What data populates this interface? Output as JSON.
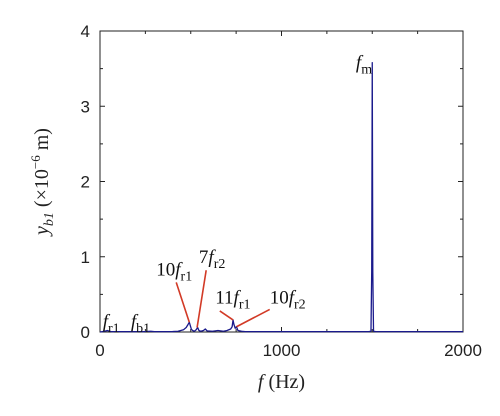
{
  "chart_data": {
    "type": "line",
    "title": "",
    "xlabel": {
      "variable": "f",
      "unit": "(Hz)"
    },
    "ylabel": {
      "variable": "y",
      "subscript": "b1",
      "unit_prefix": "(×10",
      "unit_exponent": "−6",
      "unit_suffix": " m)"
    },
    "xlim": [
      0,
      2000
    ],
    "ylim": [
      0,
      4
    ],
    "xticks": [
      0,
      1000,
      2000
    ],
    "yticks": [
      0,
      1,
      2,
      3,
      4
    ],
    "grid": false,
    "legend": "none",
    "series_color": "#1a1a8c",
    "annotation_line_color": "#d23a26",
    "series": [
      {
        "points": [
          [
            0,
            0.0
          ],
          [
            25,
            0.01
          ],
          [
            40,
            0.02
          ],
          [
            60,
            0.005
          ],
          [
            100,
            0.005
          ],
          [
            150,
            0.005
          ],
          [
            200,
            0.005
          ],
          [
            250,
            0.006
          ],
          [
            280,
            0.01
          ],
          [
            300,
            0.005
          ],
          [
            350,
            0.005
          ],
          [
            400,
            0.006
          ],
          [
            430,
            0.01
          ],
          [
            460,
            0.03
          ],
          [
            475,
            0.06
          ],
          [
            485,
            0.1
          ],
          [
            492,
            0.13
          ],
          [
            498,
            0.08
          ],
          [
            503,
            0.04
          ],
          [
            510,
            0.02
          ],
          [
            520,
            0.01
          ],
          [
            530,
            0.03
          ],
          [
            538,
            0.06
          ],
          [
            545,
            0.02
          ],
          [
            555,
            0.01
          ],
          [
            570,
            0.02
          ],
          [
            580,
            0.04
          ],
          [
            590,
            0.015
          ],
          [
            620,
            0.01
          ],
          [
            650,
            0.02
          ],
          [
            680,
            0.01
          ],
          [
            700,
            0.02
          ],
          [
            720,
            0.04
          ],
          [
            728,
            0.07
          ],
          [
            733,
            0.16
          ],
          [
            738,
            0.1
          ],
          [
            745,
            0.05
          ],
          [
            752,
            0.07
          ],
          [
            760,
            0.02
          ],
          [
            780,
            0.01
          ],
          [
            800,
            0.005
          ],
          [
            900,
            0.005
          ],
          [
            1000,
            0.005
          ],
          [
            1100,
            0.005
          ],
          [
            1200,
            0.005
          ],
          [
            1300,
            0.005
          ],
          [
            1400,
            0.005
          ],
          [
            1480,
            0.005
          ],
          [
            1493,
            0.01
          ],
          [
            1497,
            0.8
          ],
          [
            1500,
            3.58
          ],
          [
            1503,
            0.8
          ],
          [
            1507,
            0.01
          ],
          [
            1520,
            0.005
          ],
          [
            1600,
            0.005
          ],
          [
            1700,
            0.005
          ],
          [
            1800,
            0.005
          ],
          [
            1900,
            0.005
          ],
          [
            2000,
            0.005
          ]
        ]
      }
    ],
    "annotations": [
      {
        "base": "f",
        "sub": "m",
        "pre": "",
        "x": 1500,
        "y": 3.58,
        "text_x": 1410,
        "text_y": 3.5,
        "leader": false
      },
      {
        "base": "f",
        "sub": "r1",
        "pre": "",
        "x": 25,
        "y": 0.01,
        "text_x": 15,
        "text_y": 0.06,
        "leader": false
      },
      {
        "base": "f",
        "sub": "b1",
        "pre": "",
        "x": 280,
        "y": 0.01,
        "text_x": 170,
        "text_y": 0.06,
        "leader": false
      },
      {
        "base": "f",
        "sub": "r1",
        "pre": "10",
        "x": 492,
        "y": 0.13,
        "text_x": 310,
        "text_y": 0.75,
        "leader": true,
        "leader_from_x": 420,
        "leader_from_y": 0.66
      },
      {
        "base": "f",
        "sub": "r2",
        "pre": "7",
        "x": 535,
        "y": 0.06,
        "text_x": 545,
        "text_y": 0.92,
        "leader": true,
        "leader_from_x": 585,
        "leader_from_y": 0.82
      },
      {
        "base": "f",
        "sub": "r1",
        "pre": "11",
        "x": 733,
        "y": 0.16,
        "text_x": 635,
        "text_y": 0.38,
        "leader": true,
        "leader_from_x": 660,
        "leader_from_y": 0.28
      },
      {
        "base": "f",
        "sub": "r2",
        "pre": "10",
        "x": 752,
        "y": 0.07,
        "text_x": 935,
        "text_y": 0.38,
        "leader": true,
        "leader_from_x": 935,
        "leader_from_y": 0.3
      }
    ]
  }
}
